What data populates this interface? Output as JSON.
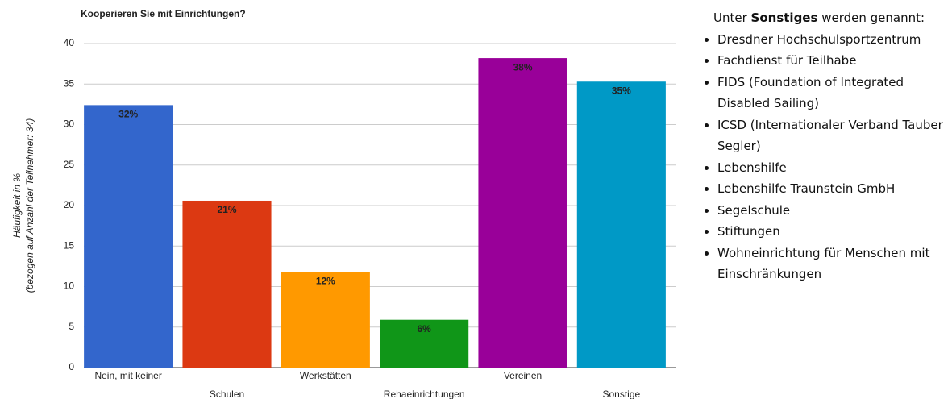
{
  "chart_data": {
    "type": "bar",
    "title": "Kooperieren Sie mit Einrichtungen?",
    "ylabel": [
      "Häufigkeit in %",
      "(bezogen auf Anzahl der Teilnehmer: 34)"
    ],
    "categories": [
      "Nein, mit keiner",
      "Schulen",
      "Werkstätten",
      "Rehaeinrichtungen",
      "Vereinen",
      "Sonstige"
    ],
    "values": [
      32.4,
      20.6,
      11.8,
      5.9,
      38.2,
      35.3
    ],
    "value_labels": [
      "32%",
      "21%",
      "12%",
      "6%",
      "38%",
      "35%"
    ],
    "colors": [
      "#3366cc",
      "#dc3912",
      "#ff9900",
      "#109618",
      "#990099",
      "#0099c6"
    ],
    "ylim": [
      0,
      40
    ],
    "yticks": [
      0,
      5,
      10,
      15,
      20,
      25,
      30,
      35,
      40
    ],
    "grid": true
  },
  "sidebar": {
    "intro_before": "Unter",
    "intro_bold": "Sonstiges",
    "intro_after": "werden genannt:",
    "items": [
      "Dresdner Hochschulsportzentrum",
      "Fachdienst für Teilhabe",
      "FIDS (Foundation of Integrated Disabled Sailing)",
      "ICSD (Internationaler Verband Tauber Segler)",
      "Lebenshilfe",
      "Lebenshilfe Traunstein GmbH",
      "Segelschule",
      "Stiftungen",
      "Wohneinrichtung für Menschen mit Einschränkungen"
    ]
  }
}
